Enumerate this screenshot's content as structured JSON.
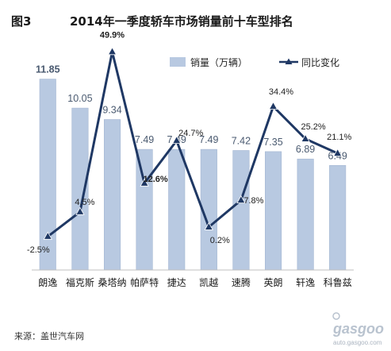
{
  "header": {
    "figure_no": "图3",
    "title": "2014年一季度轿车市场销量前十车型排名"
  },
  "legend": {
    "bar_label": "销量（万辆）",
    "line_label": "同比变化"
  },
  "source": "来源：盖世汽车网",
  "watermark": {
    "logo": "gasgoo",
    "site": "auto.gasgoo.com"
  },
  "colors": {
    "bar_fill": "#b8c9e1",
    "bar_edge": "#a4b7d2",
    "line": "#1f3864",
    "negative_label": "#c00000",
    "bar_value_label": "#4a5a70",
    "axis": "#bfbfbf"
  },
  "chart_data": {
    "type": "bar",
    "categories": [
      "朗逸",
      "福克斯",
      "桑塔纳",
      "帕萨特",
      "捷达",
      "凯越",
      "速腾",
      "英朗",
      "轩逸",
      "科鲁兹"
    ],
    "series": [
      {
        "name": "销量（万辆）",
        "type": "bar",
        "axis": "primary",
        "values": [
          11.85,
          10.05,
          9.34,
          7.49,
          7.49,
          7.49,
          7.42,
          7.35,
          6.89,
          6.49
        ],
        "labels": [
          "11.85",
          "10.05",
          "9.34",
          "7.49",
          "7.49",
          "7.49",
          "7.42",
          "7.35",
          "6.89",
          "6.49"
        ]
      },
      {
        "name": "同比变化",
        "type": "line",
        "axis": "secondary",
        "unit": "%",
        "values": [
          -2.5,
          4.5,
          49.9,
          12.6,
          24.7,
          0.2,
          7.8,
          34.4,
          25.2,
          21.1
        ],
        "labels": [
          "-2.5%",
          "4.5%",
          "49.9%",
          "12.6%",
          "24.7%",
          "0.2%",
          "7.8%",
          "34.4%",
          "25.2%",
          "21.1%"
        ]
      }
    ],
    "bar_ylim": [
      0,
      14
    ],
    "line_ylim": [
      -12,
      52
    ],
    "grid": false,
    "legend_position": "top-right"
  }
}
